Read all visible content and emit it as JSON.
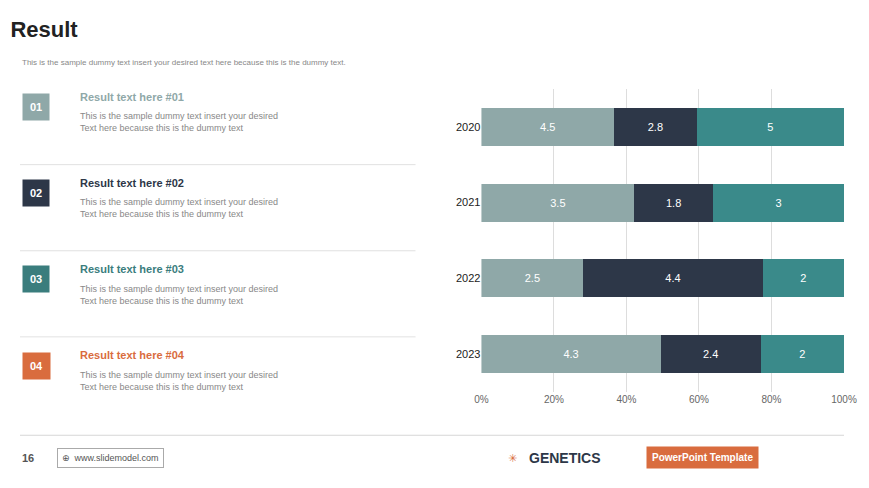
{
  "chart_data": {
    "type": "bar",
    "orientation": "horizontal",
    "stacked": true,
    "title": "Result",
    "subtitle": "This is the sample dummy text insert your desired text here because this is the dummy text.",
    "categories": [
      "2020",
      "2021",
      "2022",
      "2023"
    ],
    "series": [
      {
        "color": "#8fa8a8",
        "values": [
          36.58536585365854,
          42.16867469879518,
          28.089887640449437,
          49.42528735632184
        ],
        "amounts": [
          4.5,
          3.5,
          2.5,
          4.3
        ]
      },
      {
        "color": "#2d3748",
        "values": [
          22.76422764227642,
          21.68674698795181,
          49.43820224719101,
          27.586206896551722
        ],
        "amounts": [
          2.8,
          1.8,
          4.4,
          2.4
        ]
      },
      {
        "color": "#3a8a8a",
        "values": [
          40.65040650406504,
          36.144578313253014,
          22.47191011235955,
          22.988505747126435
        ],
        "amounts": [
          5.0,
          3.0,
          2.0,
          2.0
        ]
      }
    ],
    "xlim": [
      0,
      100
    ],
    "xticks": [
      {
        "value": 0,
        "label": "0%"
      },
      {
        "value": 20,
        "label": "20%"
      },
      {
        "value": 40,
        "label": "40%"
      },
      {
        "value": 60,
        "label": "60%"
      },
      {
        "value": 80,
        "label": "80%"
      },
      {
        "value": 100,
        "label": "100%"
      }
    ],
    "grid": true,
    "annotations": [
      {
        "text": "01",
        "color": "#8fa8a8"
      },
      {
        "text": "Result text here #01",
        "color": "#8fa8a8"
      },
      {
        "text": "This is the sample dummy text insert your desired\nText here because this is the dummy text",
        "color": "#888888"
      },
      {
        "text": "02",
        "color": "#2d3748"
      },
      {
        "text": "Result text here #02",
        "color": "#2d3748"
      },
      {
        "text": "This is the sample dummy text insert your desired\nText here because this is the dummy text",
        "color": "#888888"
      },
      {
        "text": "03",
        "color": "#3a7d7d"
      },
      {
        "text": "Result text here #03",
        "color": "#3a7d7d"
      },
      {
        "text": "This is the sample dummy text insert your desired\nText here because this is the dummy text",
        "color": "#888888"
      },
      {
        "text": "04",
        "color": "#d96c3e"
      },
      {
        "text": "Result text here #04",
        "color": "#d96c3e"
      },
      {
        "text": "This is the sample dummy text insert your desired\nText here because this is the dummy text",
        "color": "#888888"
      },
      {
        "text": "16",
        "color": "#555555"
      },
      {
        "text": "⊕  www.slidemodel.com",
        "color": "#555555"
      },
      {
        "text": "✳",
        "color": "#d96c3e"
      },
      {
        "text": "GENETICS",
        "color": "#2d3748"
      },
      {
        "text": "PowerPoint Template",
        "color": "#d96c3e"
      }
    ]
  }
}
